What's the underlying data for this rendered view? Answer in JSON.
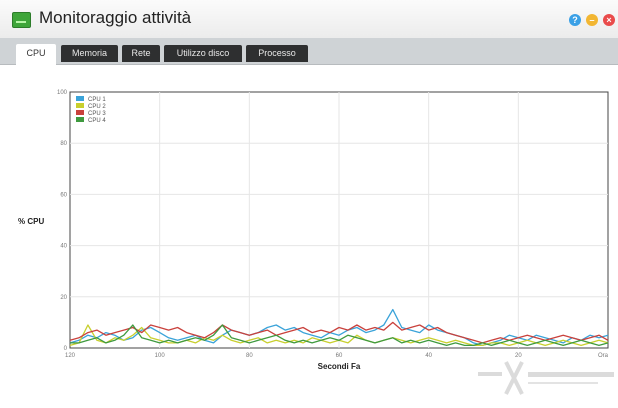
{
  "window": {
    "title": "Monitoraggio attività",
    "controls": [
      {
        "name": "help-icon",
        "glyph": "?"
      },
      {
        "name": "minimize-icon",
        "glyph": "–"
      },
      {
        "name": "close-icon",
        "glyph": "×"
      }
    ]
  },
  "tabs": [
    {
      "label": "CPU",
      "active": true
    },
    {
      "label": "Memoria",
      "active": false
    },
    {
      "label": "Rete",
      "active": false
    },
    {
      "label": "Utilizzo disco",
      "active": false
    },
    {
      "label": "Processo",
      "active": false
    }
  ],
  "chart_data": {
    "type": "line",
    "ylabel": "% CPU",
    "xlabel": "Secondi Fa",
    "xlim": [
      120,
      0
    ],
    "ylim": [
      0,
      100
    ],
    "x_ticks": [
      "120",
      "100",
      "80",
      "60",
      "40",
      "20",
      "Ora"
    ],
    "y_ticks": [
      "0",
      "20",
      "40",
      "60",
      "80",
      "100"
    ],
    "grid": true,
    "legend_position": "top-left",
    "series": [
      {
        "name": "CPU 1",
        "color": "#3aa3d9",
        "values": [
          2,
          3,
          5,
          4,
          6,
          5,
          3,
          4,
          7,
          8,
          6,
          4,
          3,
          4,
          5,
          3,
          2,
          5,
          7,
          6,
          5,
          6,
          8,
          9,
          7,
          8,
          6,
          5,
          4,
          6,
          5,
          7,
          8,
          6,
          7,
          9,
          15,
          8,
          7,
          6,
          9,
          7,
          6,
          5,
          4,
          2,
          1,
          2,
          3,
          5,
          4,
          3,
          5,
          4,
          3,
          2,
          4,
          3,
          5,
          4,
          5
        ]
      },
      {
        "name": "CPU 2",
        "color": "#c8cf2e",
        "values": [
          1,
          2,
          9,
          3,
          2,
          4,
          3,
          5,
          8,
          4,
          3,
          2,
          2,
          3,
          2,
          4,
          3,
          5,
          3,
          2,
          3,
          4,
          2,
          3,
          2,
          3,
          2,
          4,
          3,
          2,
          3,
          2,
          5,
          3,
          2,
          3,
          4,
          3,
          2,
          3,
          4,
          3,
          2,
          3,
          2,
          1,
          1,
          2,
          2,
          1,
          2,
          3,
          2,
          1,
          2,
          3,
          2,
          1,
          2,
          3,
          2
        ]
      },
      {
        "name": "CPU 3",
        "color": "#c9413c",
        "values": [
          3,
          4,
          6,
          7,
          5,
          6,
          7,
          8,
          6,
          9,
          8,
          7,
          8,
          6,
          5,
          4,
          6,
          9,
          7,
          6,
          5,
          6,
          7,
          5,
          6,
          7,
          8,
          6,
          7,
          6,
          8,
          7,
          9,
          7,
          8,
          7,
          10,
          7,
          8,
          9,
          7,
          8,
          6,
          5,
          4,
          3,
          2,
          3,
          4,
          3,
          4,
          5,
          4,
          3,
          4,
          5,
          4,
          3,
          4,
          5,
          3
        ]
      },
      {
        "name": "CPU 4",
        "color": "#3f9a3f",
        "values": [
          2,
          2,
          3,
          4,
          2,
          3,
          5,
          9,
          4,
          3,
          2,
          3,
          2,
          3,
          4,
          3,
          5,
          9,
          4,
          3,
          2,
          3,
          4,
          5,
          3,
          2,
          3,
          2,
          3,
          4,
          3,
          5,
          4,
          3,
          2,
          3,
          4,
          2,
          3,
          2,
          3,
          2,
          1,
          2,
          1,
          1,
          2,
          1,
          2,
          3,
          2,
          1,
          2,
          3,
          2,
          1,
          2,
          3,
          2,
          1,
          2
        ]
      }
    ]
  }
}
